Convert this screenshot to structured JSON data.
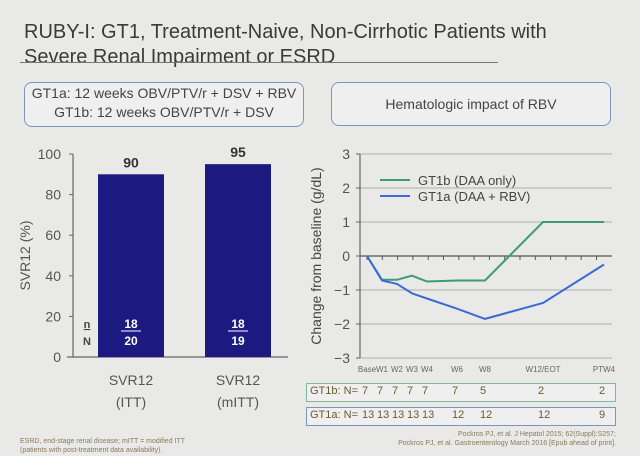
{
  "title_line1": "RUBY-I: GT1, Treatment-Naive, Non-Cirrhotic Patients with",
  "title_line2": "Severe Renal Impairment or ESRD",
  "left_box": {
    "line1": "GT1a: 12 weeks OBV/PTV/r + DSV + RBV",
    "line2": "GT1b: 12 weeks OBV/PTV/r + DSV"
  },
  "right_box": {
    "label": "Hematologic impact of RBV"
  },
  "footnote_left": [
    "ESRD, end-stage renal disease; mITT = modified ITT",
    "(patients with post-treatment data availability)."
  ],
  "footnote_right": [
    "Pockros PJ, et al. J Hepatol 2015; 62(Suppl):S257;",
    "Pockros PJ, et al. Gastroenterology March 2016 [Epub ahead of print]."
  ],
  "colors": {
    "bar": "#1c1a80",
    "gt1b": "#3f9a78",
    "gt1a": "#3b6ad6",
    "grid": "#9a9a9a"
  },
  "chart_data": [
    {
      "type": "bar",
      "ylabel": "SVR12 (%)",
      "ylim": [
        0,
        100
      ],
      "yticks": [
        0,
        20,
        40,
        60,
        80,
        100
      ],
      "categories": [
        "SVR12\n(ITT)",
        "SVR12\n(mITT)"
      ],
      "category_lines": [
        [
          "SVR12",
          "(ITT)"
        ],
        [
          "SVR12",
          "(mITT)"
        ]
      ],
      "values": [
        90,
        95
      ],
      "data_labels": [
        "90",
        "95"
      ],
      "n_label": "n",
      "N_label": "N",
      "n_values": [
        "18",
        "18"
      ],
      "N_values": [
        "20",
        "19"
      ]
    },
    {
      "type": "line",
      "ylabel": "Change from baseline (g/dL)",
      "ylim": [
        -3,
        3
      ],
      "yticks": [
        -3,
        -2,
        -1,
        0,
        1,
        2,
        3
      ],
      "ytick_labels": [
        "−3",
        "−2",
        "−1",
        "0",
        "1",
        "2",
        "3"
      ],
      "grid": true,
      "legend": "top-left",
      "x": [
        "Base",
        "W1",
        "W2",
        "W3",
        "W4",
        "W6",
        "W8",
        "W12/EOT",
        "PTW4"
      ],
      "x_weeks": [
        0,
        1,
        2,
        3,
        4,
        6,
        8,
        12,
        16
      ],
      "series": [
        {
          "name": "GT1b (DAA only)",
          "values": [
            0,
            -0.7,
            -0.7,
            -0.58,
            -0.75,
            -0.72,
            -0.72,
            1.0,
            1.0
          ]
        },
        {
          "name": "GT1a (DAA + RBV)",
          "values": [
            0,
            -0.72,
            -0.82,
            -1.1,
            -1.25,
            -1.55,
            -1.85,
            -1.38,
            -0.25
          ]
        }
      ],
      "n_table": [
        {
          "label": "GT1b: N=",
          "values": [
            "7",
            "7",
            "7",
            "7",
            "7",
            "7",
            "5",
            "2",
            "2"
          ]
        },
        {
          "label": "GT1a: N=",
          "values": [
            "13",
            "13",
            "13",
            "13",
            "13",
            "12",
            "12",
            "12",
            "9"
          ]
        }
      ]
    }
  ]
}
